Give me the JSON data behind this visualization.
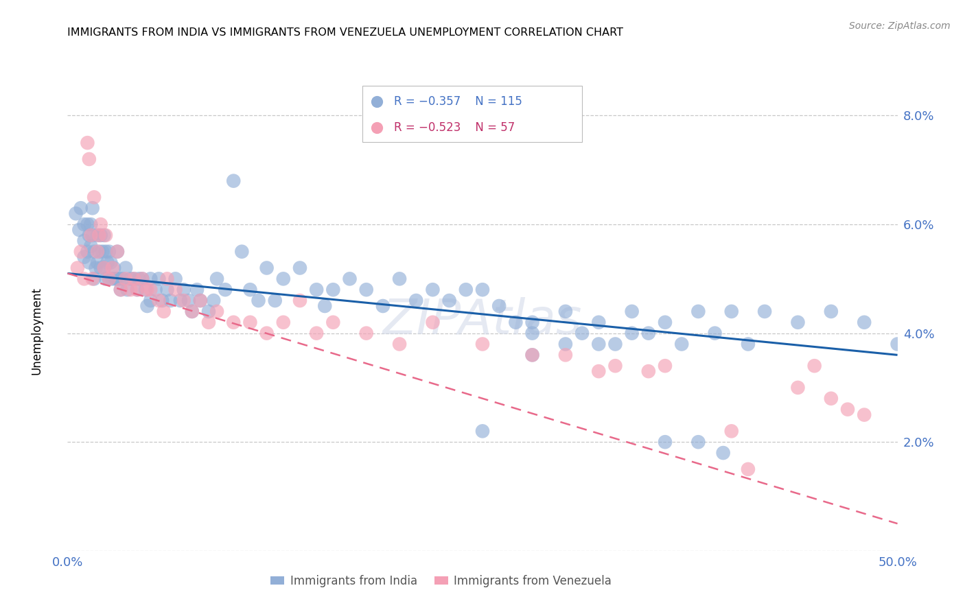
{
  "title": "IMMIGRANTS FROM INDIA VS IMMIGRANTS FROM VENEZUELA UNEMPLOYMENT CORRELATION CHART",
  "source": "Source: ZipAtlas.com",
  "ylabel": "Unemployment",
  "y_ticks": [
    0.0,
    0.02,
    0.04,
    0.06,
    0.08
  ],
  "y_tick_labels": [
    "",
    "2.0%",
    "4.0%",
    "6.0%",
    "8.0%"
  ],
  "xlim": [
    0.0,
    0.5
  ],
  "ylim": [
    0.0,
    0.09
  ],
  "india_color": "#92afd7",
  "venezuela_color": "#f4a0b5",
  "india_line_color": "#1a5fa8",
  "venezuela_line_color": "#e8698a",
  "india_scatter_x": [
    0.005,
    0.007,
    0.008,
    0.01,
    0.01,
    0.01,
    0.012,
    0.012,
    0.013,
    0.013,
    0.014,
    0.014,
    0.015,
    0.015,
    0.016,
    0.016,
    0.017,
    0.018,
    0.018,
    0.019,
    0.02,
    0.02,
    0.021,
    0.022,
    0.022,
    0.023,
    0.023,
    0.024,
    0.025,
    0.025,
    0.026,
    0.027,
    0.028,
    0.029,
    0.03,
    0.03,
    0.031,
    0.032,
    0.033,
    0.035,
    0.036,
    0.038,
    0.04,
    0.042,
    0.043,
    0.045,
    0.047,
    0.048,
    0.05,
    0.05,
    0.053,
    0.055,
    0.057,
    0.06,
    0.062,
    0.065,
    0.068,
    0.07,
    0.073,
    0.075,
    0.078,
    0.08,
    0.085,
    0.088,
    0.09,
    0.095,
    0.1,
    0.105,
    0.11,
    0.115,
    0.12,
    0.125,
    0.13,
    0.14,
    0.15,
    0.155,
    0.16,
    0.17,
    0.18,
    0.19,
    0.2,
    0.21,
    0.22,
    0.23,
    0.24,
    0.25,
    0.26,
    0.27,
    0.28,
    0.3,
    0.32,
    0.34,
    0.36,
    0.38,
    0.4,
    0.42,
    0.44,
    0.46,
    0.48,
    0.5,
    0.28,
    0.3,
    0.32,
    0.34,
    0.28,
    0.31,
    0.33,
    0.35,
    0.37,
    0.39,
    0.41,
    0.25,
    0.36,
    0.38,
    0.395
  ],
  "india_scatter_y": [
    0.062,
    0.059,
    0.063,
    0.06,
    0.057,
    0.054,
    0.06,
    0.055,
    0.058,
    0.053,
    0.06,
    0.056,
    0.063,
    0.058,
    0.055,
    0.05,
    0.052,
    0.058,
    0.053,
    0.055,
    0.058,
    0.052,
    0.055,
    0.058,
    0.052,
    0.055,
    0.05,
    0.053,
    0.055,
    0.05,
    0.053,
    0.05,
    0.052,
    0.05,
    0.055,
    0.05,
    0.05,
    0.048,
    0.05,
    0.052,
    0.048,
    0.05,
    0.05,
    0.048,
    0.05,
    0.05,
    0.048,
    0.045,
    0.05,
    0.046,
    0.048,
    0.05,
    0.046,
    0.048,
    0.046,
    0.05,
    0.046,
    0.048,
    0.046,
    0.044,
    0.048,
    0.046,
    0.044,
    0.046,
    0.05,
    0.048,
    0.068,
    0.055,
    0.048,
    0.046,
    0.052,
    0.046,
    0.05,
    0.052,
    0.048,
    0.045,
    0.048,
    0.05,
    0.048,
    0.045,
    0.05,
    0.046,
    0.048,
    0.046,
    0.048,
    0.048,
    0.045,
    0.042,
    0.042,
    0.044,
    0.042,
    0.044,
    0.042,
    0.044,
    0.044,
    0.044,
    0.042,
    0.044,
    0.042,
    0.038,
    0.04,
    0.038,
    0.038,
    0.04,
    0.036,
    0.04,
    0.038,
    0.04,
    0.038,
    0.04,
    0.038,
    0.022,
    0.02,
    0.02,
    0.018
  ],
  "venezuela_scatter_x": [
    0.006,
    0.008,
    0.01,
    0.012,
    0.013,
    0.014,
    0.015,
    0.016,
    0.018,
    0.019,
    0.02,
    0.022,
    0.023,
    0.025,
    0.027,
    0.03,
    0.032,
    0.035,
    0.038,
    0.04,
    0.042,
    0.045,
    0.048,
    0.05,
    0.055,
    0.058,
    0.06,
    0.065,
    0.07,
    0.075,
    0.08,
    0.085,
    0.09,
    0.1,
    0.11,
    0.12,
    0.13,
    0.14,
    0.15,
    0.16,
    0.18,
    0.2,
    0.22,
    0.25,
    0.28,
    0.3,
    0.33,
    0.36,
    0.4,
    0.44,
    0.45,
    0.46,
    0.47,
    0.48,
    0.32,
    0.35,
    0.41
  ],
  "venezuela_scatter_y": [
    0.052,
    0.055,
    0.05,
    0.075,
    0.072,
    0.058,
    0.05,
    0.065,
    0.055,
    0.058,
    0.06,
    0.052,
    0.058,
    0.05,
    0.052,
    0.055,
    0.048,
    0.05,
    0.048,
    0.05,
    0.048,
    0.05,
    0.048,
    0.048,
    0.046,
    0.044,
    0.05,
    0.048,
    0.046,
    0.044,
    0.046,
    0.042,
    0.044,
    0.042,
    0.042,
    0.04,
    0.042,
    0.046,
    0.04,
    0.042,
    0.04,
    0.038,
    0.042,
    0.038,
    0.036,
    0.036,
    0.034,
    0.034,
    0.022,
    0.03,
    0.034,
    0.028,
    0.026,
    0.025,
    0.033,
    0.033,
    0.015
  ],
  "india_line_x": [
    0.0,
    0.5
  ],
  "india_line_y": [
    0.051,
    0.036
  ],
  "venezuela_line_x": [
    0.0,
    0.5
  ],
  "venezuela_line_y": [
    0.051,
    0.005
  ]
}
